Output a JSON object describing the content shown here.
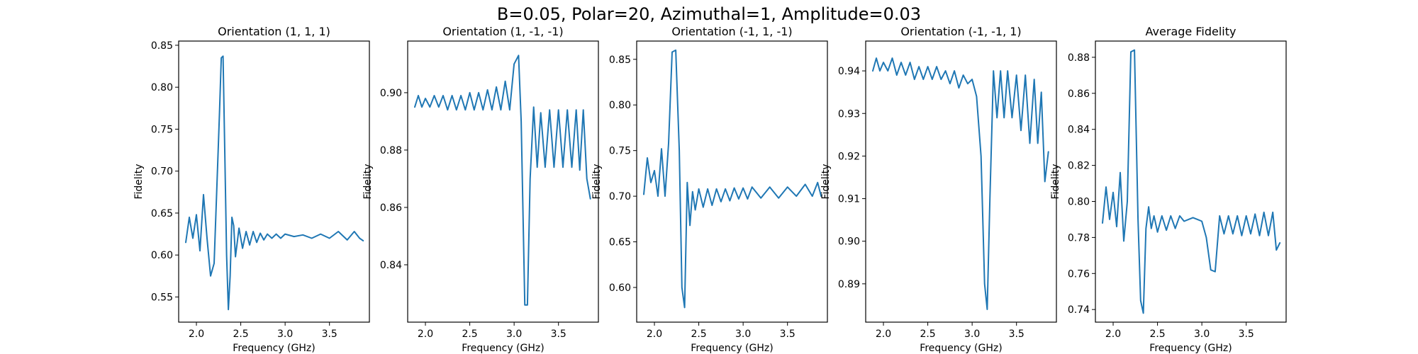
{
  "figure": {
    "title": "B=0.05, Polar=20, Azimuthal=1, Amplitude=0.03"
  },
  "chart_data": [
    {
      "type": "line",
      "title": "Orientation (1, 1, 1)",
      "xlabel": "Frequency (GHz)",
      "ylabel": "Fidelity",
      "xlim": [
        1.8,
        3.95
      ],
      "ylim": [
        0.52,
        0.855
      ],
      "xticks": [
        2.0,
        2.5,
        3.0,
        3.5
      ],
      "yticks": [
        0.55,
        0.6,
        0.65,
        0.7,
        0.75,
        0.8,
        0.85
      ],
      "xtick_labels": [
        "2.0",
        "2.5",
        "3.0",
        "3.5"
      ],
      "ytick_labels": [
        "0.55",
        "0.60",
        "0.65",
        "0.70",
        "0.75",
        "0.80",
        "0.85"
      ],
      "grid": false,
      "color": "#1f77b4",
      "x": [
        1.88,
        1.92,
        1.96,
        2.0,
        2.04,
        2.08,
        2.12,
        2.16,
        2.2,
        2.24,
        2.26,
        2.28,
        2.3,
        2.32,
        2.34,
        2.36,
        2.38,
        2.4,
        2.42,
        2.44,
        2.48,
        2.52,
        2.56,
        2.6,
        2.64,
        2.68,
        2.72,
        2.76,
        2.8,
        2.85,
        2.9,
        2.95,
        3.0,
        3.1,
        3.2,
        3.3,
        3.4,
        3.5,
        3.6,
        3.7,
        3.78,
        3.84,
        3.88
      ],
      "y": [
        0.615,
        0.645,
        0.62,
        0.648,
        0.605,
        0.672,
        0.62,
        0.575,
        0.59,
        0.71,
        0.77,
        0.835,
        0.837,
        0.72,
        0.6,
        0.535,
        0.575,
        0.645,
        0.635,
        0.598,
        0.632,
        0.608,
        0.628,
        0.612,
        0.628,
        0.615,
        0.626,
        0.618,
        0.625,
        0.62,
        0.625,
        0.62,
        0.625,
        0.622,
        0.624,
        0.62,
        0.625,
        0.62,
        0.628,
        0.618,
        0.628,
        0.62,
        0.617
      ]
    },
    {
      "type": "line",
      "title": "Orientation (1, -1, -1)",
      "xlabel": "Frequency (GHz)",
      "ylabel": "Fidelity",
      "xlim": [
        1.8,
        3.95
      ],
      "ylim": [
        0.82,
        0.918
      ],
      "xticks": [
        2.0,
        2.5,
        3.0,
        3.5
      ],
      "yticks": [
        0.84,
        0.86,
        0.88,
        0.9
      ],
      "xtick_labels": [
        "2.0",
        "2.5",
        "3.0",
        "3.5"
      ],
      "ytick_labels": [
        "0.84",
        "0.86",
        "0.88",
        "0.90"
      ],
      "grid": false,
      "color": "#1f77b4",
      "x": [
        1.88,
        1.92,
        1.96,
        2.0,
        2.05,
        2.1,
        2.15,
        2.2,
        2.25,
        2.3,
        2.35,
        2.4,
        2.45,
        2.5,
        2.55,
        2.6,
        2.65,
        2.7,
        2.75,
        2.8,
        2.85,
        2.9,
        2.95,
        3.0,
        3.05,
        3.08,
        3.12,
        3.15,
        3.18,
        3.22,
        3.26,
        3.3,
        3.35,
        3.4,
        3.45,
        3.5,
        3.55,
        3.6,
        3.65,
        3.7,
        3.74,
        3.78,
        3.82,
        3.86
      ],
      "y": [
        0.895,
        0.899,
        0.895,
        0.898,
        0.895,
        0.899,
        0.895,
        0.899,
        0.894,
        0.899,
        0.894,
        0.899,
        0.894,
        0.9,
        0.894,
        0.9,
        0.894,
        0.901,
        0.894,
        0.902,
        0.894,
        0.904,
        0.894,
        0.91,
        0.913,
        0.89,
        0.826,
        0.826,
        0.87,
        0.895,
        0.874,
        0.893,
        0.874,
        0.894,
        0.874,
        0.894,
        0.874,
        0.894,
        0.874,
        0.894,
        0.873,
        0.894,
        0.87,
        0.863
      ]
    },
    {
      "type": "line",
      "title": "Orientation (-1, 1, -1)",
      "xlabel": "Frequency (GHz)",
      "ylabel": "Fidelity",
      "xlim": [
        1.8,
        3.95
      ],
      "ylim": [
        0.562,
        0.87
      ],
      "xticks": [
        2.0,
        2.5,
        3.0,
        3.5
      ],
      "yticks": [
        0.6,
        0.65,
        0.7,
        0.75,
        0.8,
        0.85
      ],
      "xtick_labels": [
        "2.0",
        "2.5",
        "3.0",
        "3.5"
      ],
      "ytick_labels": [
        "0.60",
        "0.65",
        "0.70",
        "0.75",
        "0.80",
        "0.85"
      ],
      "grid": false,
      "color": "#1f77b4",
      "x": [
        1.88,
        1.92,
        1.96,
        2.0,
        2.04,
        2.08,
        2.12,
        2.16,
        2.2,
        2.24,
        2.28,
        2.31,
        2.34,
        2.37,
        2.4,
        2.43,
        2.46,
        2.5,
        2.55,
        2.6,
        2.65,
        2.7,
        2.75,
        2.8,
        2.85,
        2.9,
        2.95,
        3.0,
        3.05,
        3.1,
        3.2,
        3.3,
        3.4,
        3.5,
        3.6,
        3.7,
        3.78,
        3.84,
        3.88
      ],
      "y": [
        0.702,
        0.742,
        0.715,
        0.728,
        0.7,
        0.752,
        0.7,
        0.758,
        0.858,
        0.86,
        0.75,
        0.6,
        0.578,
        0.715,
        0.668,
        0.705,
        0.685,
        0.708,
        0.688,
        0.708,
        0.69,
        0.708,
        0.694,
        0.708,
        0.695,
        0.709,
        0.697,
        0.709,
        0.697,
        0.71,
        0.698,
        0.71,
        0.698,
        0.71,
        0.7,
        0.713,
        0.7,
        0.715,
        0.7
      ]
    },
    {
      "type": "line",
      "title": "Orientation (-1, -1, 1)",
      "xlabel": "Frequency (GHz)",
      "ylabel": "Fidelity",
      "xlim": [
        1.8,
        3.95
      ],
      "ylim": [
        0.881,
        0.947
      ],
      "xticks": [
        2.0,
        2.5,
        3.0,
        3.5
      ],
      "yticks": [
        0.89,
        0.9,
        0.91,
        0.92,
        0.93,
        0.94
      ],
      "xtick_labels": [
        "2.0",
        "2.5",
        "3.0",
        "3.5"
      ],
      "ytick_labels": [
        "0.89",
        "0.90",
        "0.91",
        "0.92",
        "0.93",
        "0.94"
      ],
      "grid": false,
      "color": "#1f77b4",
      "x": [
        1.88,
        1.92,
        1.96,
        2.0,
        2.05,
        2.1,
        2.15,
        2.2,
        2.25,
        2.3,
        2.35,
        2.4,
        2.45,
        2.5,
        2.55,
        2.6,
        2.65,
        2.7,
        2.75,
        2.8,
        2.85,
        2.9,
        2.95,
        3.0,
        3.05,
        3.1,
        3.14,
        3.17,
        3.2,
        3.24,
        3.28,
        3.32,
        3.36,
        3.4,
        3.45,
        3.5,
        3.55,
        3.6,
        3.65,
        3.7,
        3.74,
        3.78,
        3.82,
        3.86
      ],
      "y": [
        0.94,
        0.943,
        0.94,
        0.942,
        0.94,
        0.943,
        0.939,
        0.942,
        0.939,
        0.942,
        0.938,
        0.941,
        0.938,
        0.941,
        0.938,
        0.941,
        0.938,
        0.94,
        0.937,
        0.94,
        0.936,
        0.939,
        0.937,
        0.938,
        0.934,
        0.92,
        0.89,
        0.884,
        0.91,
        0.94,
        0.929,
        0.94,
        0.929,
        0.94,
        0.929,
        0.939,
        0.926,
        0.939,
        0.923,
        0.938,
        0.923,
        0.935,
        0.914,
        0.921
      ]
    },
    {
      "type": "line",
      "title": "Average Fidelity",
      "xlabel": "Frequency (GHz)",
      "ylabel": "Fidelity",
      "xlim": [
        1.8,
        3.95
      ],
      "ylim": [
        0.733,
        0.889
      ],
      "xticks": [
        2.0,
        2.5,
        3.0,
        3.5
      ],
      "yticks": [
        0.74,
        0.76,
        0.78,
        0.8,
        0.82,
        0.84,
        0.86,
        0.88
      ],
      "xtick_labels": [
        "2.0",
        "2.5",
        "3.0",
        "3.5"
      ],
      "ytick_labels": [
        "0.74",
        "0.76",
        "0.78",
        "0.80",
        "0.82",
        "0.84",
        "0.86",
        "0.88"
      ],
      "grid": false,
      "color": "#1f77b4",
      "x": [
        1.88,
        1.92,
        1.96,
        2.0,
        2.04,
        2.08,
        2.12,
        2.16,
        2.2,
        2.24,
        2.28,
        2.31,
        2.34,
        2.37,
        2.4,
        2.43,
        2.46,
        2.5,
        2.55,
        2.6,
        2.65,
        2.7,
        2.75,
        2.8,
        2.85,
        2.9,
        2.95,
        3.0,
        3.05,
        3.1,
        3.15,
        3.2,
        3.25,
        3.3,
        3.35,
        3.4,
        3.45,
        3.5,
        3.55,
        3.6,
        3.65,
        3.7,
        3.75,
        3.8,
        3.84,
        3.88
      ],
      "y": [
        0.788,
        0.808,
        0.79,
        0.805,
        0.786,
        0.816,
        0.778,
        0.8,
        0.883,
        0.884,
        0.79,
        0.745,
        0.738,
        0.785,
        0.797,
        0.785,
        0.792,
        0.783,
        0.792,
        0.784,
        0.792,
        0.785,
        0.792,
        0.789,
        0.79,
        0.791,
        0.79,
        0.789,
        0.78,
        0.762,
        0.761,
        0.792,
        0.782,
        0.792,
        0.782,
        0.792,
        0.781,
        0.792,
        0.782,
        0.793,
        0.781,
        0.794,
        0.781,
        0.794,
        0.773,
        0.777
      ]
    }
  ]
}
